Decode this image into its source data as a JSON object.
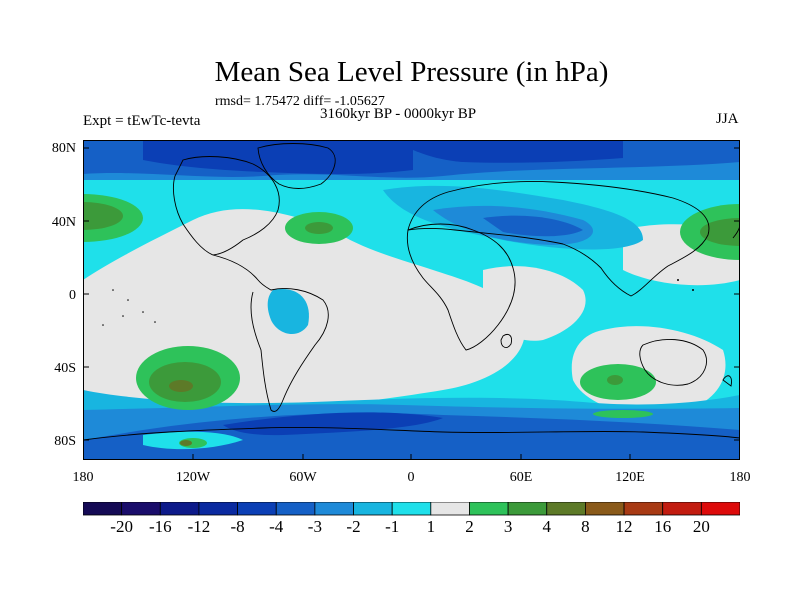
{
  "title": "Mean Sea Level Pressure (in hPa)",
  "stats_line": "rmsd= 1.75472 diff= -1.05627",
  "experiment": "Expt = tEwTc-tevta",
  "period": "3160kyr BP - 0000kyr BP",
  "season": "JJA",
  "lat_ticks": [
    "80N",
    "40N",
    "0",
    "40S",
    "80S"
  ],
  "lon_ticks": [
    "180",
    "120W",
    "60W",
    "0",
    "60E",
    "120E",
    "180"
  ],
  "colorbar": {
    "labels": [
      "-20",
      "-16",
      "-12",
      "-8",
      "-4",
      "-3",
      "-2",
      "-1",
      "1",
      "2",
      "3",
      "4",
      "8",
      "12",
      "16",
      "20"
    ],
    "colors": [
      "#1a0d6b",
      "#0d1a8a",
      "#0a2aa0",
      "#0b3fb5",
      "#1560c6",
      "#1e8ad8",
      "#18b5e0",
      "#1fe0ea",
      "#e6e6e6",
      "#2ec25a",
      "#3c9a3a",
      "#5d7a28",
      "#8a5a1a",
      "#a83a14",
      "#c21c10",
      "#dd0a0a"
    ]
  }
}
